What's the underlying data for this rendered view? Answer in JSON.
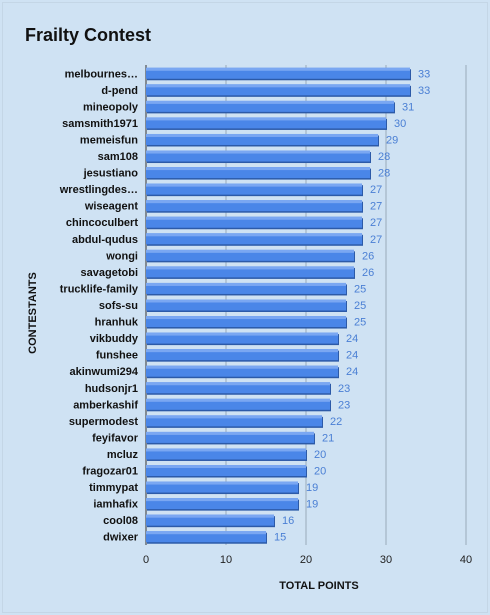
{
  "chart_data": {
    "type": "bar",
    "orientation": "horizontal",
    "title": "Frailty Contest",
    "xlabel": "TOTAL POINTS",
    "ylabel": "CONTESTANTS",
    "xlim": [
      0,
      40
    ],
    "xticks": [
      0,
      10,
      20,
      30,
      40
    ],
    "grid": true,
    "legend": "none",
    "bar_color": "#4a86e8",
    "bar_top_color": "#7aa7f2",
    "label_color": "#4a7fd4",
    "categories": [
      "melbournes…",
      "d-pend",
      "mineopoly",
      "samsmith1971",
      "memeisfun",
      "sam108",
      "jesustiano",
      "wrestlingdes…",
      "wiseagent",
      "chincoculbert",
      "abdul-qudus",
      "wongi",
      "savagetobi",
      "trucklife-family",
      "sofs-su",
      "hranhuk",
      "vikbuddy",
      "funshee",
      "akinwumi294",
      "hudsonjr1",
      "amberkashif",
      "supermodest",
      "feyifavor",
      "mcluz",
      "fragozar01",
      "timmypat",
      "iamhafix",
      "cool08",
      "dwixer"
    ],
    "values": [
      33,
      33,
      31,
      30,
      29,
      28,
      28,
      27,
      27,
      27,
      27,
      26,
      26,
      25,
      25,
      25,
      24,
      24,
      24,
      23,
      23,
      22,
      21,
      20,
      20,
      19,
      19,
      16,
      15
    ]
  }
}
